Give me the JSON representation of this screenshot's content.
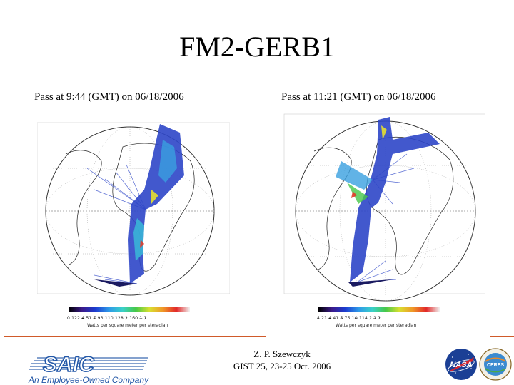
{
  "slide": {
    "title": "FM2-GERB1",
    "left_caption": "Pass at 9:44 (GMT) on 06/18/2006",
    "right_caption": "Pass at 11:21 (GMT) on 06/18/2006",
    "footer_author": "Z. P. Szewczyk",
    "footer_event": "GIST 25, 23-25 Oct. 2006"
  },
  "left_map": {
    "colorbar_ticks": "0  122  4̶  51  7̶  93  110  128  1̷  160  1̶  1̷",
    "colorbar_label": "Watts per square meter per steradian"
  },
  "right_map": {
    "colorbar_ticks": "4  21  4̶  41  5̶  75  10̶  114  1̷  1̶  1̷",
    "colorbar_label": "Watts per square meter per steradian"
  },
  "logos": {
    "saic_text": "SAIC",
    "saic_tagline": "An Employee-Owned Company",
    "nasa_text": "NASA",
    "ceres_text": "CERES"
  },
  "colors": {
    "rule": "#d05a2a",
    "saic_blue": "#2458a8",
    "nasa_blue": "#1b3f95",
    "nasa_red": "#d22630"
  }
}
